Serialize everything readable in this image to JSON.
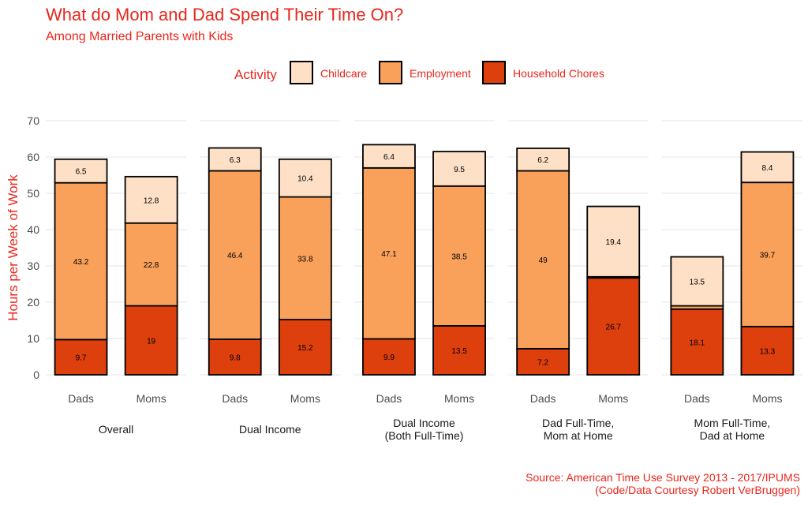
{
  "colors": {
    "title": "#e8261c",
    "Childcare": "#fde0c5",
    "Employment": "#f9a15a",
    "Household Chores": "#dd3f0d",
    "grid": "#ebebeb",
    "text": "#4d4d4d"
  },
  "chart_data": {
    "type": "bar",
    "stacked": true,
    "title": "What do Mom and Dad Spend Their Time On?",
    "subtitle": "Among Married Parents with Kids",
    "ylabel": "Hours per Week of Work",
    "ylim": [
      0,
      70
    ],
    "yticks": [
      0,
      10,
      20,
      30,
      40,
      50,
      60,
      70
    ],
    "grid": true,
    "legend": {
      "title": "Activity",
      "placement": "top",
      "entries": [
        "Childcare",
        "Employment",
        "Household Chores"
      ]
    },
    "groups": [
      {
        "label": "Overall",
        "bars": [
          {
            "label": "Dads",
            "Household Chores": 9.7,
            "Employment": 43.2,
            "Childcare": 6.5
          },
          {
            "label": "Moms",
            "Household Chores": 19,
            "Employment": 22.8,
            "Childcare": 12.8
          }
        ]
      },
      {
        "label": "Dual Income",
        "bars": [
          {
            "label": "Dads",
            "Household Chores": 9.8,
            "Employment": 46.4,
            "Childcare": 6.3
          },
          {
            "label": "Moms",
            "Household Chores": 15.2,
            "Employment": 33.8,
            "Childcare": 10.4
          }
        ]
      },
      {
        "label": "Dual Income\n(Both Full-Time)",
        "bars": [
          {
            "label": "Dads",
            "Household Chores": 9.9,
            "Employment": 47.1,
            "Childcare": 6.4
          },
          {
            "label": "Moms",
            "Household Chores": 13.5,
            "Employment": 38.5,
            "Childcare": 9.5
          }
        ]
      },
      {
        "label": "Dad Full-Time,\nMom at Home",
        "bars": [
          {
            "label": "Dads",
            "Household Chores": 7.2,
            "Employment": 49,
            "Childcare": 6.2
          },
          {
            "label": "Moms",
            "Household Chores": 26.7,
            "Employment": 0.3,
            "Childcare": 19.4
          }
        ]
      },
      {
        "label": "Mom Full-Time,\nDad at Home",
        "bars": [
          {
            "label": "Dads",
            "Household Chores": 18.1,
            "Employment": 0.9,
            "Childcare": 13.5
          },
          {
            "label": "Moms",
            "Household Chores": 13.3,
            "Employment": 39.7,
            "Childcare": 8.4
          }
        ]
      }
    ],
    "hidden_labels": [
      "Moms|Dad Full-Time,\nMom at Home|Employment",
      "Dads|Mom Full-Time,\nDad at Home|Employment"
    ],
    "caption": [
      "Source: American Time Use Survey 2013 - 2017/IPUMS",
      "(Code/Data Courtesy Robert VerBruggen)"
    ]
  }
}
